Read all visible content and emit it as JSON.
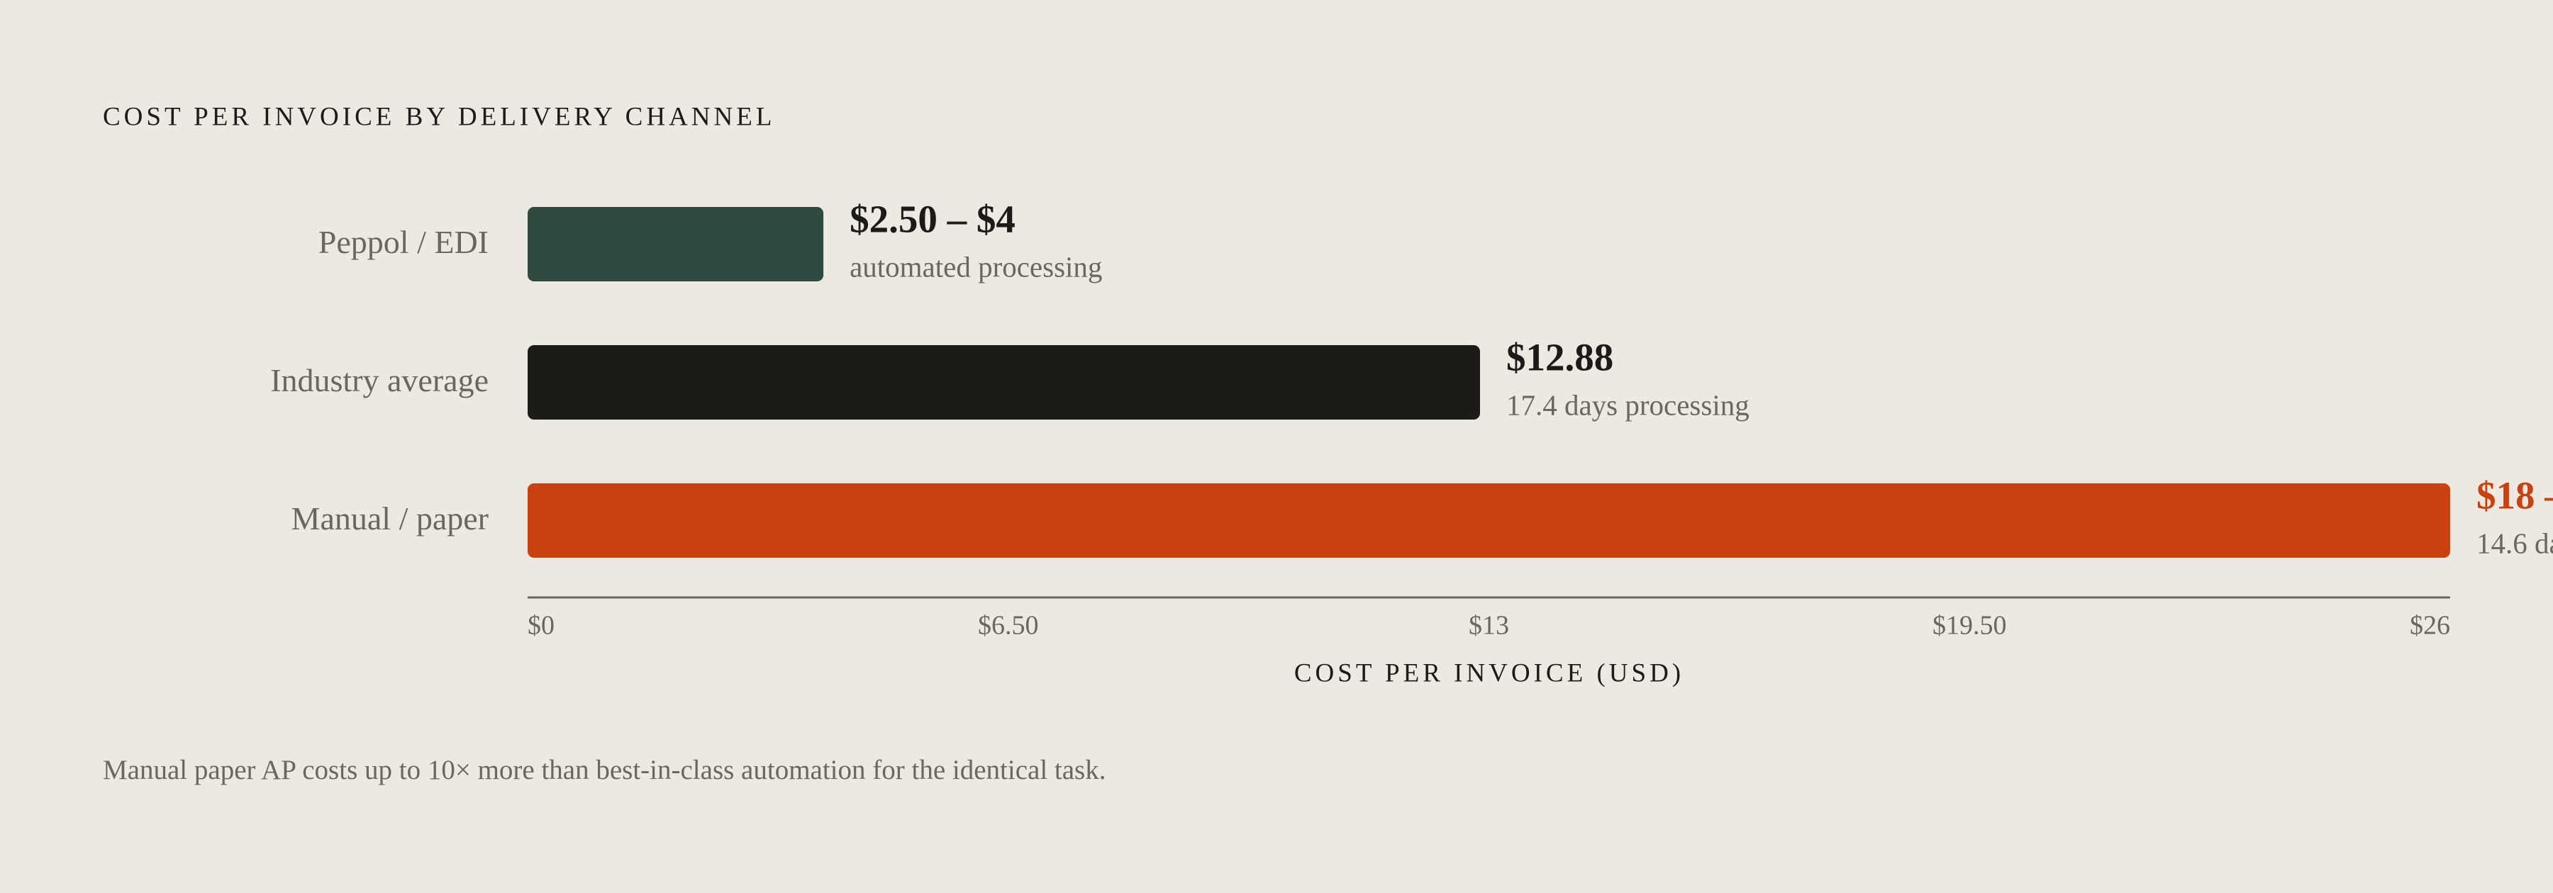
{
  "chart_data": {
    "type": "hbar",
    "title": "COST PER INVOICE BY DELIVERY CHANNEL",
    "categories": [
      "Peppol / EDI",
      "Industry average",
      "Manual / paper"
    ],
    "values": [
      4,
      12.88,
      26
    ],
    "value_labels": [
      "$2.50 – $4",
      "$12.88",
      "$18 –"
    ],
    "notes": [
      "automated processing",
      "17.4 days processing",
      "14.6 da"
    ],
    "colors": [
      "#2f4b3f",
      "#1c1b17",
      "#c8410f"
    ],
    "value_label_colors": [
      "#1c1b17",
      "#1c1b17",
      "#c8410f"
    ],
    "xlim": [
      0,
      26
    ],
    "xticks": [
      {
        "value": 0,
        "label": "$0"
      },
      {
        "value": 6.5,
        "label": "$6.50"
      },
      {
        "value": 13,
        "label": "$13"
      },
      {
        "value": 19.5,
        "label": "$19.50"
      },
      {
        "value": 26,
        "label": "$26"
      }
    ],
    "xlabel": "COST PER INVOICE (USD)",
    "footnote": "Manual paper AP costs up to 10× more than best-in-class automation for the identical task."
  }
}
